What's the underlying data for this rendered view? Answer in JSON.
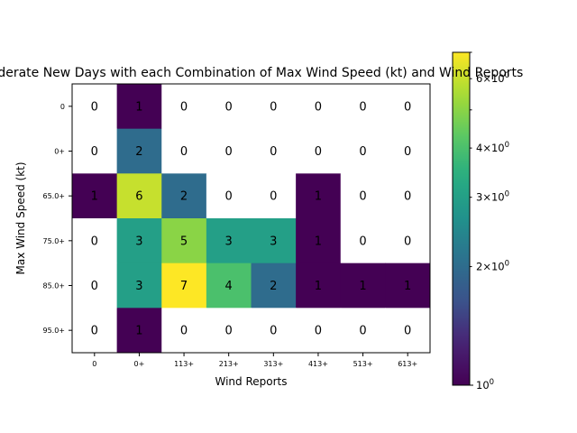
{
  "chart_data": {
    "type": "heatmap",
    "title": "Moderate New Days with each Combination of Max Wind Speed (kt) and Wind Reports",
    "xlabel": "Wind Reports",
    "ylabel": "Max Wind Speed (kt)",
    "x_categories": [
      "0",
      "0+",
      "113+",
      "213+",
      "313+",
      "413+",
      "513+",
      "613+"
    ],
    "y_categories": [
      "0",
      "0+",
      "65.0+",
      "75.0+",
      "85.0+",
      "95.0+"
    ],
    "values": [
      [
        0,
        1,
        0,
        0,
        0,
        0,
        0,
        0
      ],
      [
        0,
        2,
        0,
        0,
        0,
        0,
        0,
        0
      ],
      [
        1,
        6,
        2,
        0,
        0,
        1,
        0,
        0
      ],
      [
        0,
        3,
        5,
        3,
        3,
        1,
        0,
        0
      ],
      [
        0,
        3,
        7,
        4,
        2,
        1,
        1,
        1
      ],
      [
        0,
        1,
        0,
        0,
        0,
        0,
        0,
        0
      ]
    ],
    "color_scale": "log",
    "colormap": "viridis",
    "zero_cells_color": "#ffffff",
    "colorbar": {
      "min": 1,
      "max": 7,
      "tick_labels": [
        {
          "value": 1,
          "base": "10",
          "exp": "0",
          "mult": ""
        },
        {
          "value": 2,
          "base": "10",
          "exp": "0",
          "mult": "2×"
        },
        {
          "value": 3,
          "base": "10",
          "exp": "0",
          "mult": "3×"
        },
        {
          "value": 4,
          "base": "10",
          "exp": "0",
          "mult": "4×"
        },
        {
          "value": 6,
          "base": "10",
          "exp": "0",
          "mult": "6×"
        }
      ]
    }
  }
}
